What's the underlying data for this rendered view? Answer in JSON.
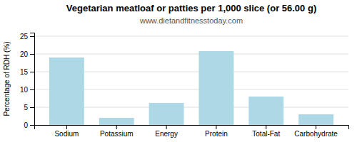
{
  "chart_data": {
    "type": "bar",
    "title": "Vegetarian meatloaf or patties per 1,000 slice (or 56.00 g)",
    "subtitle": "www.dietandfitnesstoday.com",
    "categories": [
      "Sodium",
      "Potassium",
      "Energy",
      "Protein",
      "Total-Fat",
      "Carbohydrate"
    ],
    "values": [
      19.0,
      2.0,
      6.2,
      20.8,
      8.0,
      3.0
    ],
    "color": "#add8e6",
    "ylabel": "Percentage of RDH (%)",
    "ylim": [
      0,
      26
    ],
    "yticks": [
      0,
      5,
      10,
      15,
      20,
      25
    ],
    "grid": true
  }
}
